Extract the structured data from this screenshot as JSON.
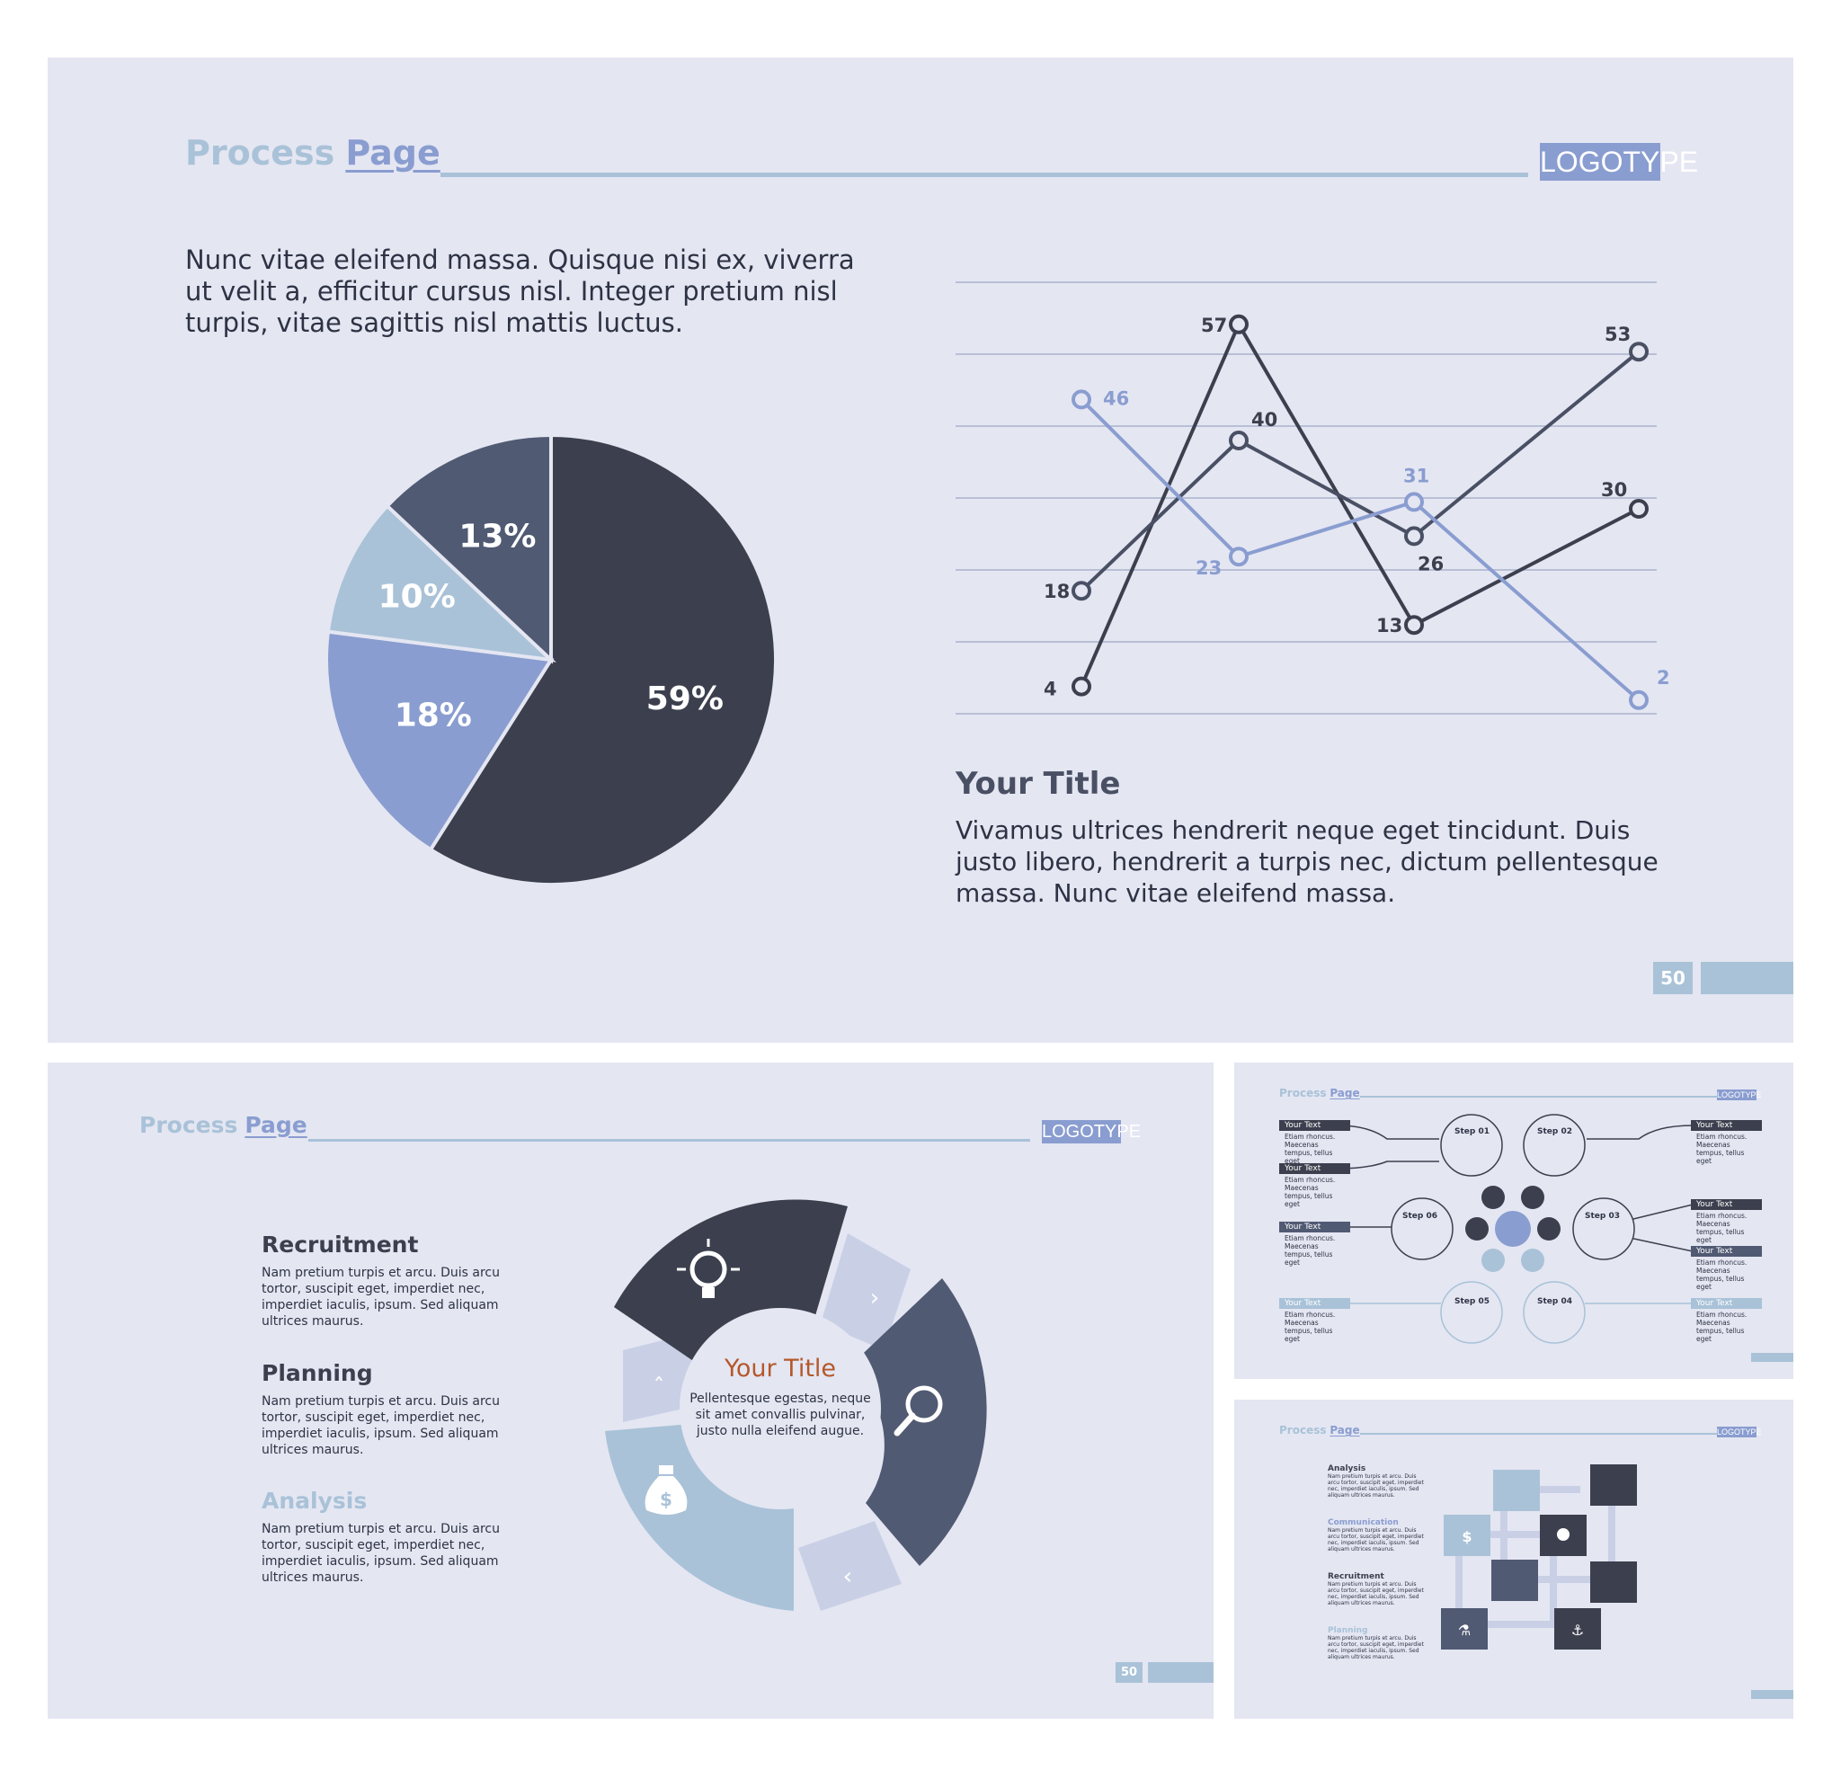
{
  "slide_main": {
    "title_part1": "Process",
    "title_part2": "Page",
    "logo": "LOGOTYPE",
    "intro": "Nunc vitae eleifend massa. Quisque nisi ex, viverra ut velit a, efficitur cursus nisl. Integer pretium nisl turpis, vitae sagittis nisl mattis luctus.",
    "section_title": "Your Title",
    "section_body": "Vivamus ultrices hendrerit neque eget tincidunt. Duis justo libero, hendrerit a turpis nec, dictum pellentesque massa. Nunc vitae eleifend massa.",
    "page_number": "50"
  },
  "chart_data": [
    {
      "type": "pie",
      "slices": [
        {
          "label": "59%",
          "value": 59,
          "color": "#3c404e"
        },
        {
          "label": "18%",
          "value": 18,
          "color": "#8a9dd0"
        },
        {
          "label": "10%",
          "value": 10,
          "color": "#a9c2d8"
        },
        {
          "label": "13%",
          "value": 13,
          "color": "#515a73"
        }
      ]
    },
    {
      "type": "line",
      "ylim": [
        0,
        60
      ],
      "x": [
        1,
        2,
        3,
        4
      ],
      "grid": true,
      "series": [
        {
          "values": [
            4,
            57,
            13,
            30
          ],
          "labels": [
            "4",
            "57",
            "13",
            "30"
          ],
          "color": "#3c404e"
        },
        {
          "values": [
            18,
            40,
            26,
            53
          ],
          "labels": [
            "18",
            "40",
            "26",
            "53"
          ],
          "color": "#4a5064"
        },
        {
          "values": [
            46,
            23,
            31,
            2
          ],
          "labels": [
            "46",
            "23",
            "31",
            "2"
          ],
          "color": "#8a9dd0"
        }
      ]
    }
  ],
  "slide_cycle": {
    "title_part1": "Process",
    "title_part2": "Page",
    "logo": "LOGOTYPE",
    "items": [
      {
        "heading": "Recruitment",
        "body": "Nam pretium turpis et arcu. Duis arcu tortor, suscipit eget, imperdiet nec, imperdiet iaculis, ipsum. Sed aliquam ultrices maurus."
      },
      {
        "heading": "Planning",
        "body": "Nam pretium turpis et arcu. Duis arcu tortor, suscipit eget, imperdiet nec, imperdiet iaculis, ipsum. Sed aliquam ultrices maurus."
      },
      {
        "heading": "Analysis",
        "body": "Nam pretium turpis et arcu. Duis arcu tortor, suscipit eget, imperdiet nec, imperdiet iaculis, ipsum. Sed aliquam ultrices maurus."
      }
    ],
    "center_title": "Your Title",
    "center_body": "Pellentesque egestas, neque sit amet convallis pulvinar, justo nulla eleifend augue.",
    "page_number": "50",
    "icons": [
      "lightbulb-icon",
      "magnifier-icon",
      "money-bag-icon"
    ]
  },
  "slide_steps": {
    "title_part1": "Process",
    "title_part2": "Page",
    "logo": "LOGOTYPE",
    "steps": [
      "Step 01",
      "Step 02",
      "Step 03",
      "Step 04",
      "Step 05",
      "Step 06"
    ],
    "your_text": "Your Text",
    "snippet": "Etiam rhoncus. Maecenas tempus, tellus eget"
  },
  "slide_cubes": {
    "title_part1": "Process",
    "title_part2": "Page",
    "logo": "LOGOTYPE",
    "items": [
      {
        "heading": "Analysis",
        "style": "dark"
      },
      {
        "heading": "Communication",
        "style": "light"
      },
      {
        "heading": "Recruitment",
        "style": "dark"
      },
      {
        "heading": "Planning",
        "style": "light"
      }
    ],
    "body": "Nam pretium turpis et arcu. Duis arcu tortor, suscipit eget, imperdiet nec, imperdiet iaculis, ipsum. Sed aliquam ultrices maurus."
  }
}
